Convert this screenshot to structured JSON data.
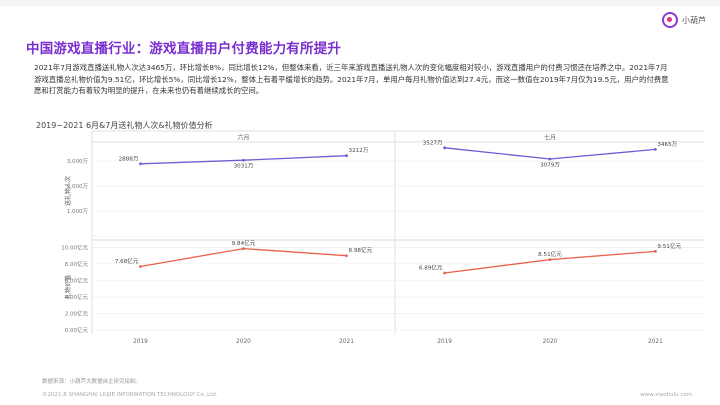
{
  "header": {
    "title": "中国游戏直播行业：游戏直播用户付费能力有所提升",
    "logo_text": "小葫芦"
  },
  "body_text": "2021年7月游戏直播送礼物人次达3465万，环比增长8%，同比增长12%，但整体来看，近三年来游戏直播送礼物人次的变化幅度相对较小，游戏直播用户的付费习惯还在培养之中。2021年7月游戏直播总礼物价值为9.51亿，环比增长5%，同比增长12%，整体上有着平缓增长的趋势。2021年7月，单用户每月礼物价值达到27.4元，而这一数值在2019年7月仅为19.5元，用户的付费意愿和打赏能力有着较为明显的提升，在未来也仍有着继续成长的空间。",
  "chart_data": {
    "type": "line",
    "title": "2019~2021 6月&7月送礼物人次&礼物价值分析",
    "panels": [
      "六月",
      "七月"
    ],
    "categories": [
      "2019",
      "2020",
      "2021"
    ],
    "series": [
      {
        "name": "送礼物人次",
        "unit": "万",
        "color": "#6a5fd6",
        "ytick_labels": [
          "",
          "1,000万",
          "2,000万",
          "3,000万"
        ],
        "ytick_values": [
          0,
          1000,
          2000,
          3000
        ],
        "ylim": [
          0,
          3600
        ],
        "june": [
          2888,
          3031,
          3212
        ],
        "july": [
          3527,
          3079,
          3465
        ],
        "june_labels": [
          "2888万",
          "3031万",
          "3212万"
        ],
        "july_labels": [
          "3527万",
          "3079万",
          "3465万"
        ]
      },
      {
        "name": "礼物价值",
        "unit": "亿元",
        "color": "#e8604a",
        "ytick_labels": [
          "0.00亿元",
          "2.00亿元",
          "4.00亿元",
          "6.00亿元",
          "8.00亿元",
          "10.00亿元"
        ],
        "ytick_values": [
          0,
          2,
          4,
          6,
          8,
          10
        ],
        "ylim": [
          0,
          10.4
        ],
        "june": [
          7.68,
          9.84,
          8.98
        ],
        "july": [
          6.89,
          8.51,
          9.51
        ],
        "june_labels": [
          "7.68亿元",
          "9.84亿元",
          "8.98亿元"
        ],
        "july_labels": [
          "6.89亿元",
          "8.51亿元",
          "9.51亿元"
        ]
      }
    ],
    "grid": true
  },
  "footer": {
    "source": "数据来源：小葫芦大数据自主研究绘制。",
    "copyright": "©2021.8 SHANGHAI LIUJIE INFORMATION TECHNOLOGY Co.,Ltd.",
    "url": "www.xiaohulu.com"
  }
}
